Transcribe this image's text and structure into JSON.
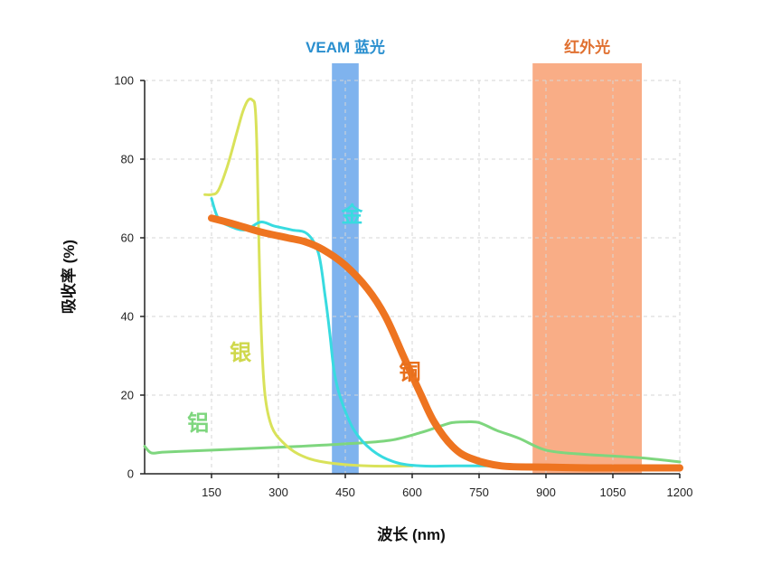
{
  "chart_data": {
    "type": "line",
    "xlabel": "波长 (nm)",
    "ylabel": "吸收率 (%)",
    "xlim": [
      0,
      1200
    ],
    "ylim": [
      0,
      100
    ],
    "x_ticks": [
      150,
      300,
      450,
      600,
      750,
      900,
      1050,
      1200
    ],
    "y_ticks": [
      0,
      20,
      40,
      60,
      80,
      100
    ],
    "grid": true,
    "bands": [
      {
        "name": "VEAM 蓝光",
        "x_range": [
          420,
          480
        ],
        "color": "#7fb3ee",
        "label_color": "#2a8fcf"
      },
      {
        "name": "红外光",
        "x_range": [
          870,
          1115
        ],
        "color": "#f9ad86",
        "label_color": "#e07030"
      }
    ],
    "series": [
      {
        "name": "银",
        "color": "#d9e25a",
        "width": 3,
        "label_at": [
          215,
          29
        ],
        "label_color": "#cfd84c",
        "points": [
          [
            135,
            71
          ],
          [
            150,
            71
          ],
          [
            165,
            72
          ],
          [
            185,
            78
          ],
          [
            205,
            86
          ],
          [
            220,
            92
          ],
          [
            232,
            95
          ],
          [
            242,
            95
          ],
          [
            248,
            93
          ],
          [
            252,
            82
          ],
          [
            256,
            60
          ],
          [
            262,
            35
          ],
          [
            270,
            20
          ],
          [
            285,
            12
          ],
          [
            310,
            8
          ],
          [
            345,
            5
          ],
          [
            400,
            3
          ],
          [
            500,
            2
          ],
          [
            600,
            2
          ]
        ]
      },
      {
        "name": "金",
        "color": "#38dbe0",
        "width": 3,
        "label_at": [
          465,
          64
        ],
        "label_color": "#38dbe0",
        "points": [
          [
            150,
            70
          ],
          [
            165,
            65
          ],
          [
            190,
            63
          ],
          [
            225,
            62
          ],
          [
            260,
            64
          ],
          [
            290,
            63
          ],
          [
            330,
            62
          ],
          [
            365,
            61
          ],
          [
            390,
            56
          ],
          [
            405,
            45
          ],
          [
            415,
            36
          ],
          [
            425,
            26
          ],
          [
            440,
            19
          ],
          [
            470,
            11
          ],
          [
            510,
            6
          ],
          [
            560,
            3
          ],
          [
            620,
            2
          ],
          [
            700,
            2
          ],
          [
            850,
            2
          ]
        ]
      },
      {
        "name": "铜",
        "color": "#ee7420",
        "width": 8,
        "label_at": [
          595,
          24
        ],
        "label_color": "#e8701c",
        "points": [
          [
            150,
            65
          ],
          [
            200,
            63.5
          ],
          [
            260,
            61.5
          ],
          [
            320,
            60
          ],
          [
            360,
            59
          ],
          [
            400,
            57
          ],
          [
            450,
            53
          ],
          [
            500,
            47
          ],
          [
            540,
            40
          ],
          [
            580,
            30
          ],
          [
            620,
            20
          ],
          [
            650,
            13
          ],
          [
            690,
            7
          ],
          [
            730,
            4
          ],
          [
            800,
            2
          ],
          [
            900,
            1.7
          ],
          [
            1000,
            1.5
          ],
          [
            1100,
            1.5
          ],
          [
            1200,
            1.5
          ]
        ]
      },
      {
        "name": "铝",
        "color": "#7ed67e",
        "width": 3,
        "label_at": [
          120,
          11
        ],
        "label_color": "#7ed67e",
        "points": [
          [
            0,
            7
          ],
          [
            15,
            5.3
          ],
          [
            40,
            5.5
          ],
          [
            80,
            5.7
          ],
          [
            150,
            6
          ],
          [
            250,
            6.5
          ],
          [
            350,
            7
          ],
          [
            450,
            7.6
          ],
          [
            550,
            8.5
          ],
          [
            620,
            10.5
          ],
          [
            660,
            12
          ],
          [
            690,
            13
          ],
          [
            720,
            13.2
          ],
          [
            750,
            13
          ],
          [
            790,
            11
          ],
          [
            840,
            9
          ],
          [
            900,
            6
          ],
          [
            980,
            5
          ],
          [
            1050,
            4.5
          ],
          [
            1120,
            4
          ],
          [
            1200,
            3
          ]
        ]
      }
    ]
  }
}
